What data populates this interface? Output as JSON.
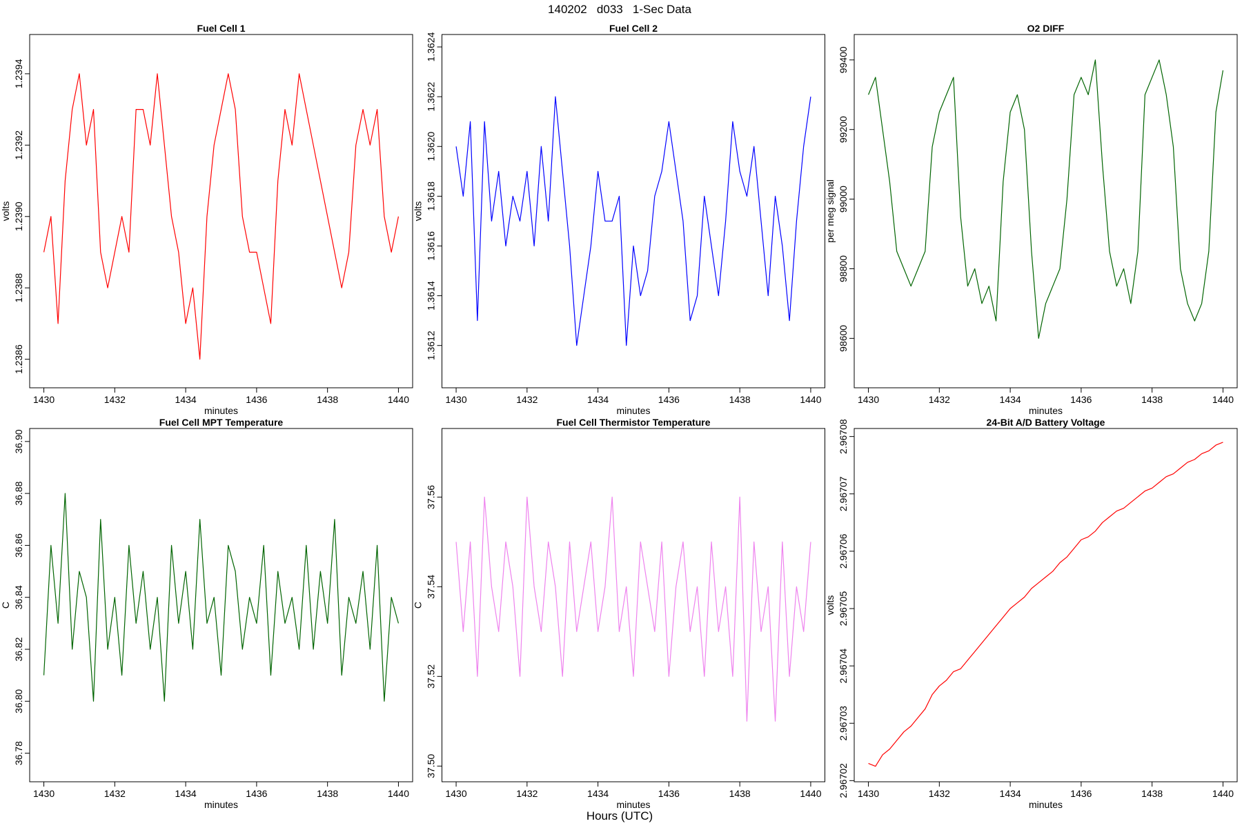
{
  "title": "140202   d033   1-Sec Data",
  "xlabel": "Hours (UTC)",
  "chart_data": [
    {
      "type": "line",
      "title": "Fuel Cell 1",
      "xlabel": "minutes",
      "ylabel": "volts",
      "color": "#ff0000",
      "x": [
        1430,
        1430.2,
        1430.4,
        1430.6,
        1430.8,
        1431,
        1431.2,
        1431.4,
        1431.6,
        1431.8,
        1432,
        1432.2,
        1432.4,
        1432.6,
        1432.8,
        1433,
        1433.2,
        1433.4,
        1433.6,
        1433.8,
        1434,
        1434.2,
        1434.4,
        1434.6,
        1434.8,
        1435,
        1435.2,
        1435.4,
        1435.6,
        1435.8,
        1436,
        1436.2,
        1436.4,
        1436.6,
        1436.8,
        1437,
        1437.2,
        1437.4,
        1437.6,
        1437.8,
        1438,
        1438.2,
        1438.4,
        1438.6,
        1438.8,
        1439,
        1439.2,
        1439.4,
        1439.6,
        1439.8,
        1440
      ],
      "values": [
        1.2389,
        1.239,
        1.2387,
        1.2391,
        1.2393,
        1.2394,
        1.2392,
        1.2393,
        1.2389,
        1.2388,
        1.2389,
        1.239,
        1.2389,
        1.2393,
        1.2393,
        1.2392,
        1.2394,
        1.2392,
        1.239,
        1.2389,
        1.2387,
        1.2388,
        1.2386,
        1.239,
        1.2392,
        1.2393,
        1.2394,
        1.2393,
        1.239,
        1.2389,
        1.2389,
        1.2388,
        1.2387,
        1.2391,
        1.2393,
        1.2392,
        1.2394,
        1.2393,
        1.2392,
        1.2391,
        1.239,
        1.2389,
        1.2388,
        1.2389,
        1.2392,
        1.2393,
        1.2392,
        1.2393,
        1.239,
        1.2389,
        1.239
      ],
      "xlim": [
        1429.6,
        1440.4
      ],
      "xticks": [
        1430,
        1432,
        1434,
        1436,
        1438,
        1440
      ],
      "ylim": [
        1.23852,
        1.23951
      ],
      "yticks": [
        1.2386,
        1.2388,
        {
          "value": 1.239,
          "label": "1.2390"
        },
        1.2392,
        1.2394
      ]
    },
    {
      "type": "line",
      "title": "Fuel Cell 2",
      "xlabel": "minutes",
      "ylabel": "volts",
      "color": "#0000ff",
      "x": [
        1430,
        1430.2,
        1430.4,
        1430.6,
        1430.8,
        1431,
        1431.2,
        1431.4,
        1431.6,
        1431.8,
        1432,
        1432.2,
        1432.4,
        1432.6,
        1432.8,
        1433,
        1433.2,
        1433.4,
        1433.6,
        1433.8,
        1434,
        1434.2,
        1434.4,
        1434.6,
        1434.8,
        1435,
        1435.2,
        1435.4,
        1435.6,
        1435.8,
        1436,
        1436.2,
        1436.4,
        1436.6,
        1436.8,
        1437,
        1437.2,
        1437.4,
        1437.6,
        1437.8,
        1438,
        1438.2,
        1438.4,
        1438.6,
        1438.8,
        1439,
        1439.2,
        1439.4,
        1439.6,
        1439.8,
        1440
      ],
      "values": [
        1.362,
        1.3618,
        1.3621,
        1.3613,
        1.3621,
        1.3617,
        1.3619,
        1.3616,
        1.3618,
        1.3617,
        1.3619,
        1.3616,
        1.362,
        1.3617,
        1.3622,
        1.3619,
        1.3616,
        1.3612,
        1.3614,
        1.3616,
        1.3619,
        1.3617,
        1.3617,
        1.3618,
        1.3612,
        1.3616,
        1.3614,
        1.3615,
        1.3618,
        1.3619,
        1.3621,
        1.3619,
        1.3617,
        1.3613,
        1.3614,
        1.3618,
        1.3616,
        1.3614,
        1.3617,
        1.3621,
        1.3619,
        1.3618,
        1.362,
        1.3617,
        1.3614,
        1.3618,
        1.3616,
        1.3613,
        1.3617,
        1.362,
        1.3622
      ],
      "xlim": [
        1429.6,
        1440.4
      ],
      "xticks": [
        1430,
        1432,
        1434,
        1436,
        1438,
        1440
      ],
      "ylim": [
        1.36103,
        1.36245
      ],
      "yticks": [
        1.3612,
        1.3614,
        1.3616,
        1.3618,
        {
          "value": 1.362,
          "label": "1.3620"
        },
        1.3622,
        1.3624
      ]
    },
    {
      "type": "line",
      "title": "O2 DIFF",
      "xlabel": "minutes",
      "ylabel": "per meg signal",
      "color": "#006400",
      "x": [
        1430,
        1430.2,
        1430.4,
        1430.6,
        1430.8,
        1431,
        1431.2,
        1431.4,
        1431.6,
        1431.8,
        1432,
        1432.2,
        1432.4,
        1432.6,
        1432.8,
        1433,
        1433.2,
        1433.4,
        1433.6,
        1433.8,
        1434,
        1434.2,
        1434.4,
        1434.6,
        1434.8,
        1435,
        1435.2,
        1435.4,
        1435.6,
        1435.8,
        1436,
        1436.2,
        1436.4,
        1436.6,
        1436.8,
        1437,
        1437.2,
        1437.4,
        1437.6,
        1437.8,
        1438,
        1438.2,
        1438.4,
        1438.6,
        1438.8,
        1439,
        1439.2,
        1439.4,
        1439.6,
        1439.8,
        1440
      ],
      "values": [
        99300,
        99350,
        99200,
        99050,
        98850,
        98800,
        98750,
        98800,
        98850,
        99150,
        99250,
        99300,
        99350,
        98950,
        98750,
        98800,
        98700,
        98750,
        98650,
        99050,
        99250,
        99300,
        99200,
        98850,
        98600,
        98700,
        98750,
        98800,
        99000,
        99300,
        99350,
        99300,
        99400,
        99100,
        98850,
        98750,
        98800,
        98700,
        98850,
        99300,
        99350,
        99400,
        99300,
        99150,
        98800,
        98700,
        98650,
        98700,
        98850,
        99250,
        99370
      ],
      "xlim": [
        1429.6,
        1440.4
      ],
      "xticks": [
        1430,
        1432,
        1434,
        1436,
        1438,
        1440
      ],
      "ylim": [
        98458,
        99473
      ],
      "yticks": [
        98600,
        98800,
        99000,
        99200,
        99400
      ]
    },
    {
      "type": "line",
      "title": "Fuel Cell MPT Temperature",
      "xlabel": "minutes",
      "ylabel": "C",
      "color": "#006400",
      "x": [
        1430,
        1430.2,
        1430.4,
        1430.6,
        1430.8,
        1431,
        1431.2,
        1431.4,
        1431.6,
        1431.8,
        1432,
        1432.2,
        1432.4,
        1432.6,
        1432.8,
        1433,
        1433.2,
        1433.4,
        1433.6,
        1433.8,
        1434,
        1434.2,
        1434.4,
        1434.6,
        1434.8,
        1435,
        1435.2,
        1435.4,
        1435.6,
        1435.8,
        1436,
        1436.2,
        1436.4,
        1436.6,
        1436.8,
        1437,
        1437.2,
        1437.4,
        1437.6,
        1437.8,
        1438,
        1438.2,
        1438.4,
        1438.6,
        1438.8,
        1439,
        1439.2,
        1439.4,
        1439.6,
        1439.8,
        1440
      ],
      "values": [
        36.81,
        36.86,
        36.83,
        36.88,
        36.82,
        36.85,
        36.84,
        36.8,
        36.87,
        36.82,
        36.84,
        36.81,
        36.86,
        36.83,
        36.85,
        36.82,
        36.84,
        36.8,
        36.86,
        36.83,
        36.85,
        36.82,
        36.87,
        36.83,
        36.84,
        36.81,
        36.86,
        36.85,
        36.82,
        36.84,
        36.83,
        36.86,
        36.81,
        36.85,
        36.83,
        36.84,
        36.82,
        36.86,
        36.82,
        36.85,
        36.83,
        36.87,
        36.81,
        36.84,
        36.83,
        36.85,
        36.82,
        36.86,
        36.8,
        36.84,
        36.83
      ],
      "xlim": [
        1429.6,
        1440.4
      ],
      "xticks": [
        1430,
        1432,
        1434,
        1436,
        1438,
        1440
      ],
      "ylim": [
        36.769,
        36.905
      ],
      "yticks": [
        36.78,
        {
          "value": 36.8,
          "label": "36.80"
        },
        36.82,
        36.84,
        36.86,
        36.88,
        {
          "value": 36.9,
          "label": "36.90"
        }
      ]
    },
    {
      "type": "line",
      "title": "Fuel Cell Thermistor Temperature",
      "xlabel": "minutes",
      "ylabel": "C",
      "color": "#ee82ee",
      "x": [
        1430,
        1430.2,
        1430.4,
        1430.6,
        1430.8,
        1431,
        1431.2,
        1431.4,
        1431.6,
        1431.8,
        1432,
        1432.2,
        1432.4,
        1432.6,
        1432.8,
        1433,
        1433.2,
        1433.4,
        1433.6,
        1433.8,
        1434,
        1434.2,
        1434.4,
        1434.6,
        1434.8,
        1435,
        1435.2,
        1435.4,
        1435.6,
        1435.8,
        1436,
        1436.2,
        1436.4,
        1436.6,
        1436.8,
        1437,
        1437.2,
        1437.4,
        1437.6,
        1437.8,
        1438,
        1438.2,
        1438.4,
        1438.6,
        1438.8,
        1439,
        1439.2,
        1439.4,
        1439.6,
        1439.8,
        1440
      ],
      "values": [
        37.55,
        37.53,
        37.55,
        37.52,
        37.56,
        37.54,
        37.53,
        37.55,
        37.54,
        37.52,
        37.56,
        37.54,
        37.53,
        37.55,
        37.54,
        37.52,
        37.55,
        37.53,
        37.54,
        37.55,
        37.53,
        37.54,
        37.56,
        37.53,
        37.54,
        37.52,
        37.55,
        37.54,
        37.53,
        37.55,
        37.52,
        37.54,
        37.55,
        37.53,
        37.54,
        37.52,
        37.55,
        37.53,
        37.54,
        37.52,
        37.56,
        37.51,
        37.55,
        37.53,
        37.54,
        37.51,
        37.55,
        37.52,
        37.54,
        37.53,
        37.55
      ],
      "xlim": [
        1429.6,
        1440.4
      ],
      "xticks": [
        1430,
        1432,
        1434,
        1436,
        1438,
        1440
      ],
      "ylim": [
        37.4965,
        37.5753
      ],
      "yticks": [
        {
          "value": 37.5,
          "label": "37.50"
        },
        37.52,
        37.54,
        37.56
      ]
    },
    {
      "type": "line",
      "title": "24-Bit A/D Battery Voltage",
      "xlabel": "minutes",
      "ylabel": "volts",
      "color": "#ff0000",
      "x": [
        1430,
        1430.2,
        1430.4,
        1430.6,
        1430.8,
        1431,
        1431.2,
        1431.4,
        1431.6,
        1431.8,
        1432,
        1432.2,
        1432.4,
        1432.6,
        1432.8,
        1433,
        1433.2,
        1433.4,
        1433.6,
        1433.8,
        1434,
        1434.2,
        1434.4,
        1434.6,
        1434.8,
        1435,
        1435.2,
        1435.4,
        1435.6,
        1435.8,
        1436,
        1436.2,
        1436.4,
        1436.6,
        1436.8,
        1437,
        1437.2,
        1437.4,
        1437.6,
        1437.8,
        1438,
        1438.2,
        1438.4,
        1438.6,
        1438.8,
        1439,
        1439.2,
        1439.4,
        1439.6,
        1439.8,
        1440
      ],
      "values": [
        2.967023,
        2.9670225,
        2.9670245,
        2.9670255,
        2.967027,
        2.9670285,
        2.9670295,
        2.967031,
        2.9670325,
        2.967035,
        2.9670365,
        2.9670375,
        2.967039,
        2.9670395,
        2.967041,
        2.9670425,
        2.967044,
        2.9670455,
        2.967047,
        2.9670485,
        2.96705,
        2.967051,
        2.967052,
        2.9670535,
        2.9670545,
        2.9670555,
        2.9670565,
        2.967058,
        2.967059,
        2.9670605,
        2.967062,
        2.9670625,
        2.9670635,
        2.967065,
        2.967066,
        2.967067,
        2.9670675,
        2.9670685,
        2.9670695,
        2.9670705,
        2.967071,
        2.967072,
        2.967073,
        2.9670735,
        2.9670745,
        2.9670755,
        2.967076,
        2.967077,
        2.9670775,
        2.9670785,
        2.967079
      ],
      "xlim": [
        1429.6,
        1440.4
      ],
      "xticks": [
        1430,
        1432,
        1434,
        1436,
        1438,
        1440
      ],
      "ylim": [
        2.9670198,
        2.9670814
      ],
      "yticks": [
        2.96702,
        2.96703,
        2.96704,
        2.96705,
        2.96706,
        2.96707,
        2.96708
      ]
    }
  ]
}
